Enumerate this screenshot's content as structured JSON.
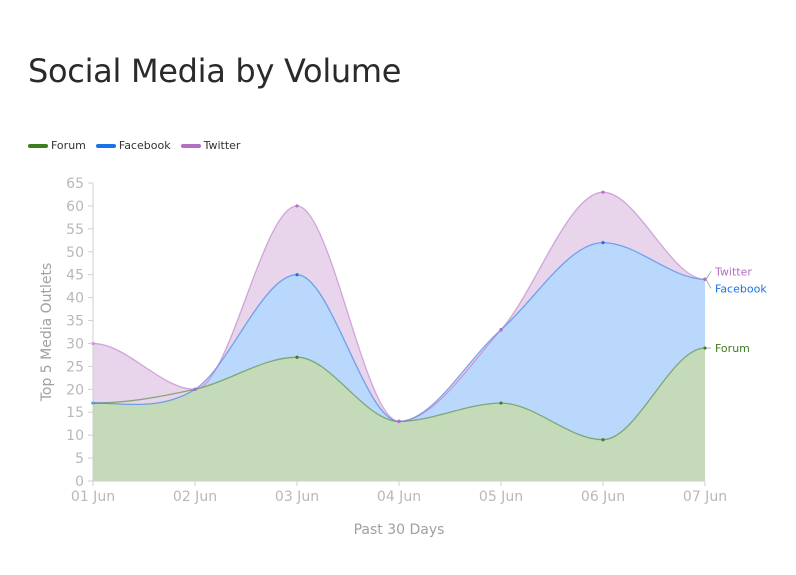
{
  "chart_data": {
    "type": "area",
    "title": "Social Media by Volume",
    "xlabel": "Past 30 Days",
    "ylabel": "Top 5 Media Outlets",
    "categories": [
      "01 Jun",
      "02 Jun",
      "03 Jun",
      "04 Jun",
      "05 Jun",
      "06 Jun",
      "07 Jun"
    ],
    "ylim": [
      0,
      65
    ],
    "yticks": [
      0,
      5,
      10,
      15,
      20,
      25,
      30,
      35,
      40,
      45,
      50,
      55,
      60,
      65
    ],
    "stacked": true,
    "legend_position": "top-left",
    "series": [
      {
        "name": "Forum",
        "values": [
          17,
          20,
          27,
          13,
          17,
          9,
          29
        ],
        "color": "#3e7d1e",
        "fill": "#c5dab8"
      },
      {
        "name": "Facebook",
        "values": [
          0,
          0,
          18,
          0,
          16,
          43,
          15
        ],
        "color": "#1a73e8",
        "fill": "#bad8fb"
      },
      {
        "name": "Twitter",
        "values": [
          13,
          0,
          15,
          0,
          0,
          11,
          0
        ],
        "color": "#b56ec2",
        "fill": "#e8d5ec"
      }
    ]
  }
}
